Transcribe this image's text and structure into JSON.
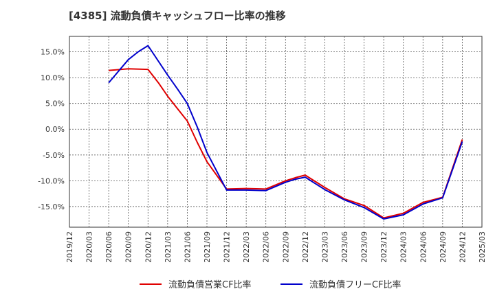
{
  "title": "[4385]  流動負債キャッシュフロー比率の推移",
  "chart_data": {
    "type": "line",
    "title": "[4385]  流動負債キャッシュフロー比率の推移",
    "xlabel": "",
    "ylabel": "",
    "ylim": [
      -19,
      18
    ],
    "y_ticks": [
      15,
      10,
      5,
      0,
      -5,
      -10,
      -15
    ],
    "y_tick_labels": [
      "15.0%",
      "10.0%",
      "5.0%",
      "0.0%",
      "-5.0%",
      "-10.0%",
      "-15.0%"
    ],
    "grid": true,
    "legend_position": "bottom",
    "categories": [
      "2019/12",
      "2020/03",
      "2020/06",
      "2020/09",
      "2020/12",
      "2021/03",
      "2021/06",
      "2021/09",
      "2021/12",
      "2022/03",
      "2022/06",
      "2022/09",
      "2022/12",
      "2023/03",
      "2023/06",
      "2023/09",
      "2023/12",
      "2024/03",
      "2024/06",
      "2024/09",
      "2024/12",
      "2025/03"
    ],
    "series": [
      {
        "name": "流動負債営業CF比率",
        "color": "#e00000",
        "values": [
          null,
          null,
          11.4,
          11.7,
          11.6,
          6.4,
          1.6,
          -6.3,
          -11.6,
          -11.5,
          -11.6,
          -10.0,
          -8.9,
          -11.3,
          -13.5,
          -14.8,
          -17.2,
          -16.3,
          -14.2,
          -13.2,
          -2.0,
          null
        ],
        "extra_points": [
          {
            "at": 4.55,
            "value": 8.9
          },
          {
            "at": 5.5,
            "value": 4.0
          },
          {
            "at": 6.5,
            "value": -2.5
          },
          {
            "at": 11.5,
            "value": -9.4
          }
        ]
      },
      {
        "name": "流動負債フリーCF比率",
        "color": "#0000cc",
        "values": [
          null,
          null,
          9.0,
          13.5,
          16.2,
          10.5,
          5.0,
          -4.5,
          -11.8,
          -11.8,
          -11.9,
          -10.3,
          -9.3,
          -11.7,
          -13.7,
          -15.2,
          -17.4,
          -16.6,
          -14.5,
          -13.3,
          -2.4,
          null
        ],
        "extra_points": [
          {
            "at": 3.5,
            "value": 15.0
          },
          {
            "at": 5.5,
            "value": 7.8
          },
          {
            "at": 6.5,
            "value": 0.5
          },
          {
            "at": 11.5,
            "value": -9.7
          }
        ]
      }
    ]
  }
}
